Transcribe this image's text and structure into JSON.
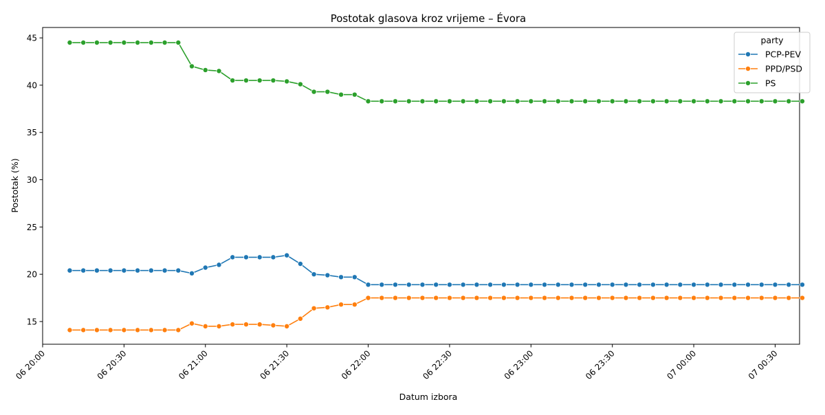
{
  "chart_data": {
    "type": "line",
    "title": "Postotak glasova kroz vrijeme – Évora",
    "xlabel": "Datum izbora",
    "ylabel": "Postotak (%)",
    "x_start": "2024-03-06T20:10",
    "x_step_minutes": 5,
    "x_range": [
      "2024-03-06T20:00",
      "2024-03-07T00:39"
    ],
    "x_ticks": [
      "06 20:00",
      "06 20:30",
      "06 21:00",
      "06 21:30",
      "06 22:00",
      "06 22:30",
      "06 23:00",
      "06 23:30",
      "07 00:00",
      "07 00:30"
    ],
    "ylim": [
      12.6,
      46.1
    ],
    "y_ticks": [
      15,
      20,
      25,
      30,
      35,
      40,
      45
    ],
    "grid": false,
    "legend": {
      "title": "party",
      "placement": "top-right"
    },
    "series": [
      {
        "name": "PCP-PEV",
        "color": "#1f77b4",
        "values": [
          20.4,
          20.4,
          20.4,
          20.4,
          20.4,
          20.4,
          20.4,
          20.4,
          20.4,
          20.1,
          20.7,
          21.0,
          21.8,
          21.8,
          21.8,
          21.8,
          22.0,
          21.1,
          20.0,
          19.9,
          19.7,
          19.7,
          18.9,
          18.9,
          18.9,
          18.9,
          18.9,
          18.9,
          18.9,
          18.9,
          18.9,
          18.9,
          18.9,
          18.9,
          18.9,
          18.9,
          18.9,
          18.9,
          18.9,
          18.9,
          18.9,
          18.9,
          18.9,
          18.9,
          18.9,
          18.9,
          18.9,
          18.9,
          18.9,
          18.9,
          18.9,
          18.9,
          18.9,
          18.9,
          18.9
        ]
      },
      {
        "name": "PPD/PSD",
        "color": "#ff7f0e",
        "values": [
          14.1,
          14.1,
          14.1,
          14.1,
          14.1,
          14.1,
          14.1,
          14.1,
          14.1,
          14.8,
          14.5,
          14.5,
          14.7,
          14.7,
          14.7,
          14.6,
          14.5,
          15.3,
          16.4,
          16.5,
          16.8,
          16.8,
          17.5,
          17.5,
          17.5,
          17.5,
          17.5,
          17.5,
          17.5,
          17.5,
          17.5,
          17.5,
          17.5,
          17.5,
          17.5,
          17.5,
          17.5,
          17.5,
          17.5,
          17.5,
          17.5,
          17.5,
          17.5,
          17.5,
          17.5,
          17.5,
          17.5,
          17.5,
          17.5,
          17.5,
          17.5,
          17.5,
          17.5,
          17.5,
          17.5
        ]
      },
      {
        "name": "PS",
        "color": "#2ca02c",
        "values": [
          44.5,
          44.5,
          44.5,
          44.5,
          44.5,
          44.5,
          44.5,
          44.5,
          44.5,
          42.0,
          41.6,
          41.5,
          40.5,
          40.5,
          40.5,
          40.5,
          40.4,
          40.1,
          39.3,
          39.3,
          39.0,
          39.0,
          38.3,
          38.3,
          38.3,
          38.3,
          38.3,
          38.3,
          38.3,
          38.3,
          38.3,
          38.3,
          38.3,
          38.3,
          38.3,
          38.3,
          38.3,
          38.3,
          38.3,
          38.3,
          38.3,
          38.3,
          38.3,
          38.3,
          38.3,
          38.3,
          38.3,
          38.3,
          38.3,
          38.3,
          38.3,
          38.3,
          38.3,
          38.3,
          38.3
        ]
      }
    ]
  }
}
